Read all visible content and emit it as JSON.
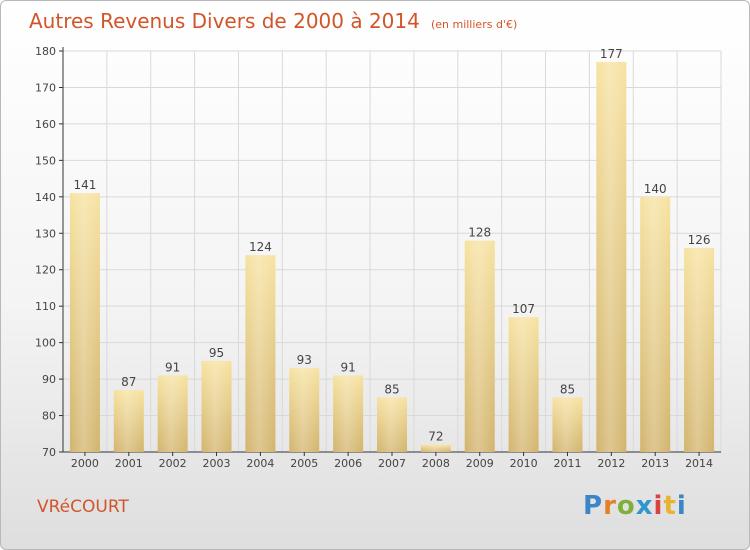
{
  "page": {
    "title": "Autres Revenus Divers de 2000 à 2014",
    "unit": "(en milliers d'€)",
    "commune": "VRéCOURT",
    "logo": {
      "text": "Proxiti",
      "colors": [
        "#3b86c6",
        "#e57f2a",
        "#7fb03c",
        "#2f97cf",
        "#d9423e",
        "#e7b431",
        "#3b86c6"
      ]
    }
  },
  "colors": {
    "accent": "#d2552a",
    "bar_light": "#f7e2a1",
    "bar_dark": "#d2b46d",
    "grid": "#d9d9d9",
    "axis": "#333333"
  },
  "chart_data": {
    "type": "bar",
    "categories": [
      "2000",
      "2001",
      "2002",
      "2003",
      "2004",
      "2005",
      "2006",
      "2007",
      "2008",
      "2009",
      "2010",
      "2011",
      "2012",
      "2013",
      "2014"
    ],
    "values": [
      141,
      87,
      91,
      95,
      124,
      93,
      91,
      85,
      72,
      128,
      107,
      85,
      177,
      140,
      126
    ],
    "ylim": [
      70,
      180
    ],
    "yticks": [
      70,
      80,
      90,
      100,
      110,
      120,
      130,
      140,
      150,
      160,
      170,
      180
    ],
    "grid": true,
    "xlabel": "",
    "ylabel": ""
  }
}
